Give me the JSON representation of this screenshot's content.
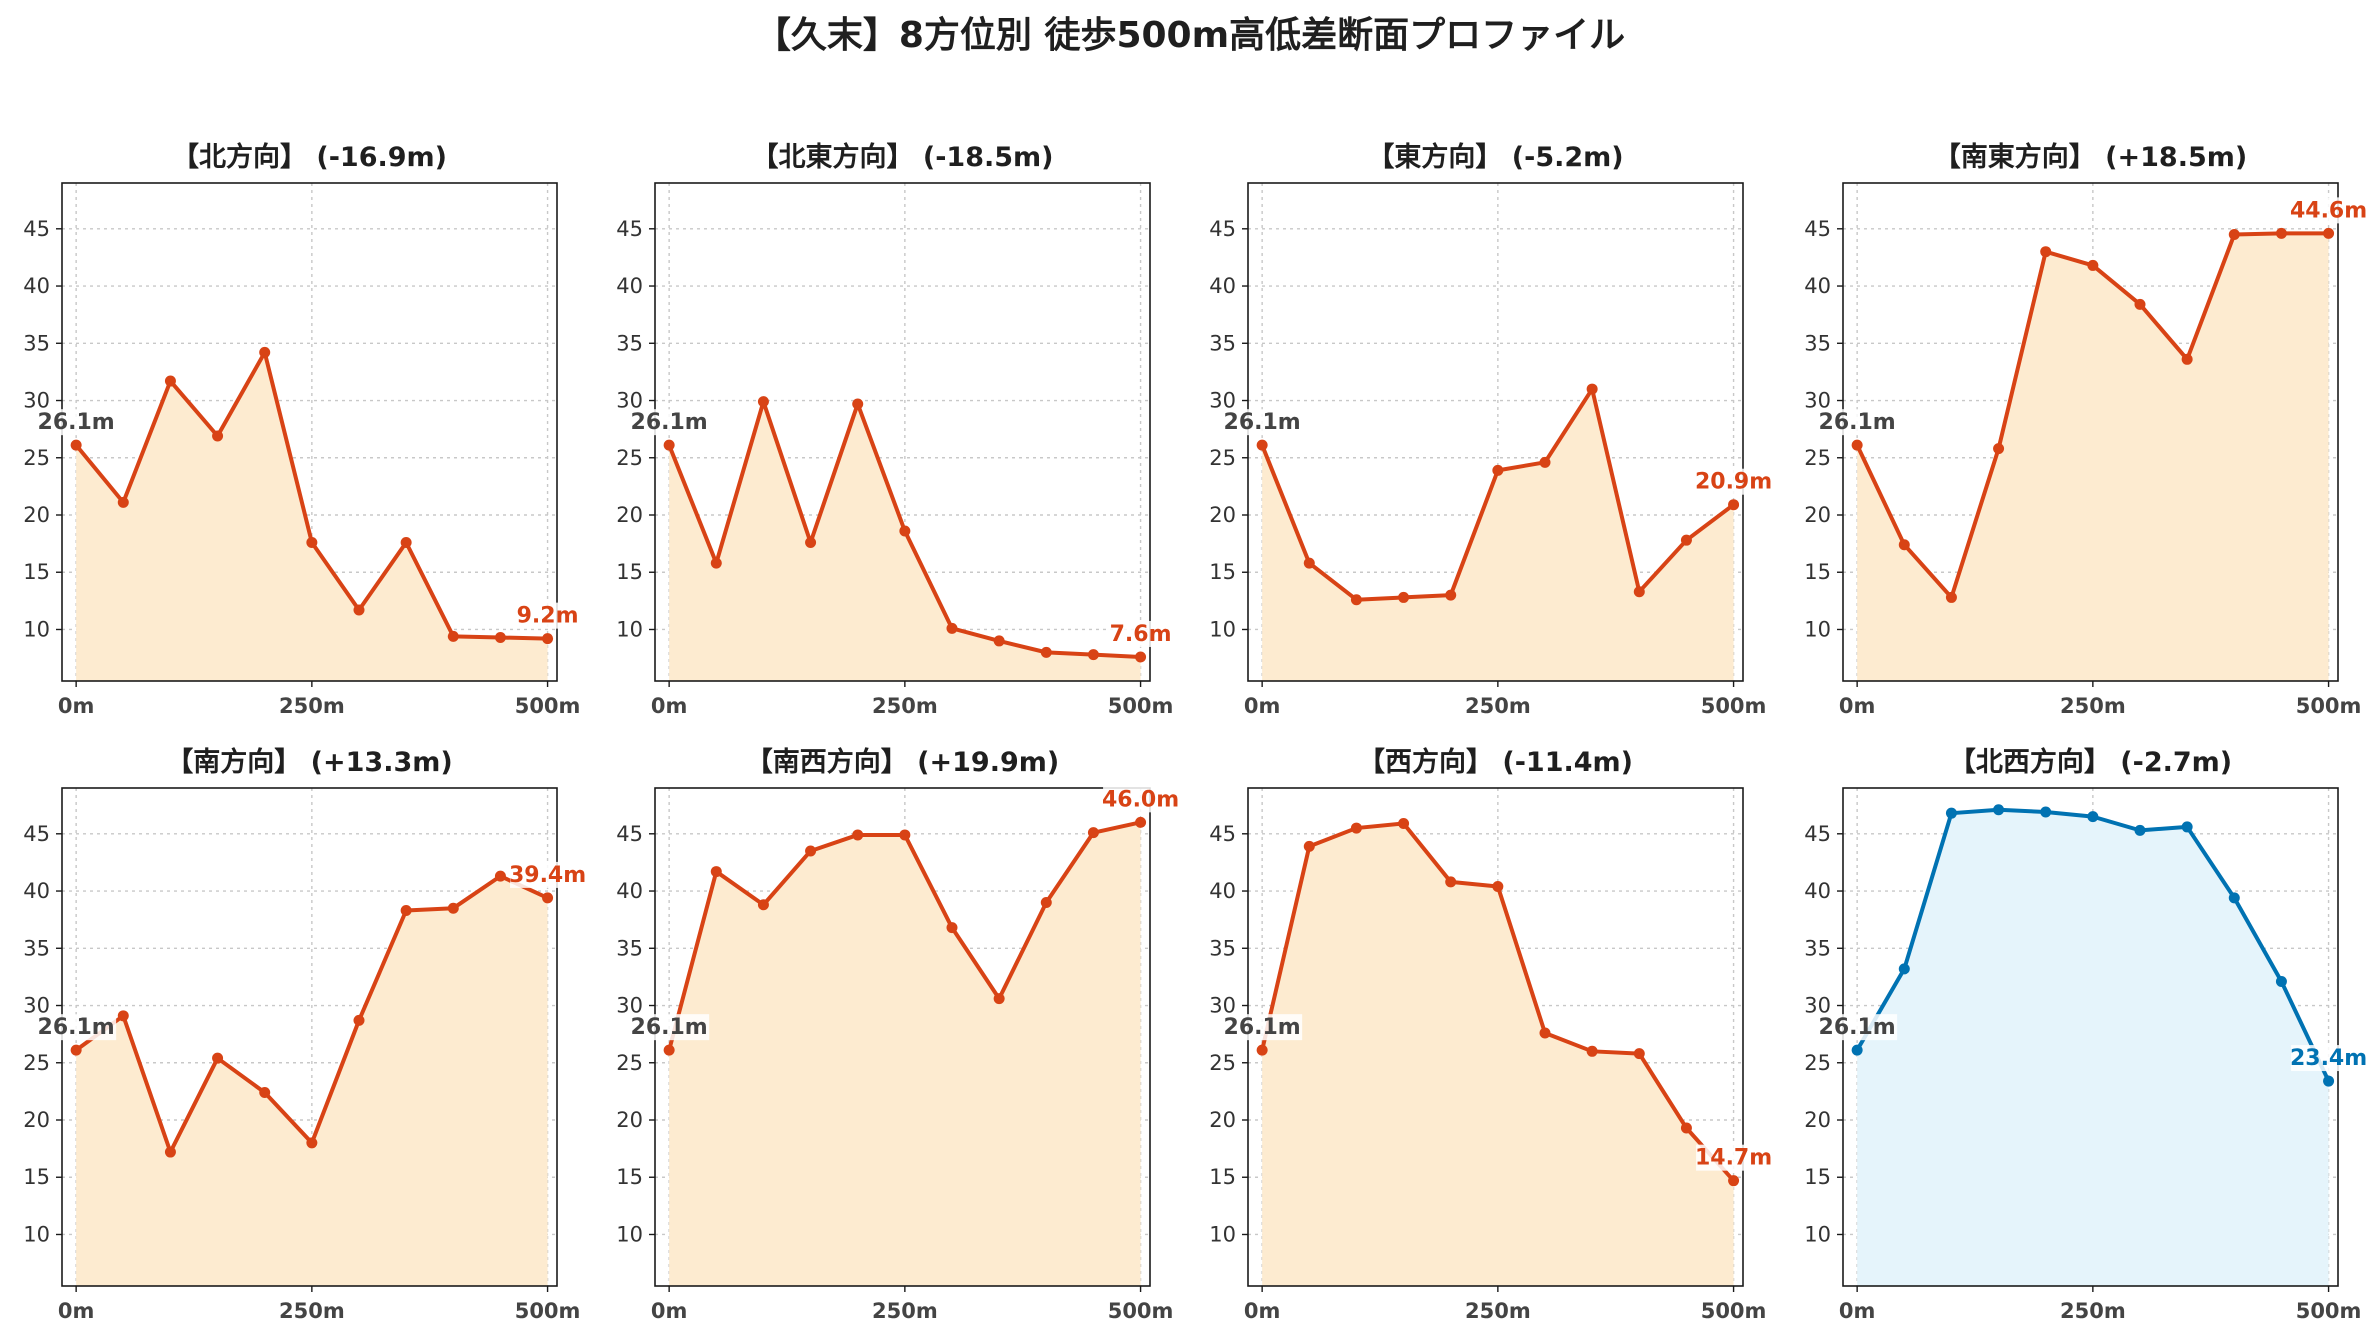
{
  "title": "【久末】8方位別 徒歩500m高低差断面プロファイル",
  "colors": {
    "line_default": "#d84315",
    "fill_default": "#fdebd0",
    "line_highlight": "#0072b2",
    "fill_highlight": "#e5f4fb",
    "grid": "#c8c8c8",
    "start_label": "#444444"
  },
  "chart_data": [
    {
      "type": "area",
      "title": "【北方向】 (-16.9m)",
      "x": [
        0,
        50,
        100,
        150,
        200,
        250,
        300,
        350,
        400,
        450,
        500
      ],
      "y": [
        26.1,
        21.1,
        31.7,
        26.9,
        34.2,
        17.6,
        11.7,
        17.6,
        9.4,
        9.3,
        9.2
      ],
      "start_label": "26.1m",
      "end_label": "9.2m",
      "xticks": [
        0,
        250,
        500
      ],
      "xtick_labels": [
        "0m",
        "250m",
        "500m"
      ],
      "yticks": [
        10,
        15,
        20,
        25,
        30,
        35,
        40,
        45
      ],
      "ylim": [
        5.5,
        49
      ],
      "grid": true,
      "highlight": false
    },
    {
      "type": "area",
      "title": "【北東方向】 (-18.5m)",
      "x": [
        0,
        50,
        100,
        150,
        200,
        250,
        300,
        350,
        400,
        450,
        500
      ],
      "y": [
        26.1,
        15.8,
        29.9,
        17.6,
        29.7,
        18.6,
        10.1,
        9.0,
        8.0,
        7.8,
        7.6
      ],
      "start_label": "26.1m",
      "end_label": "7.6m",
      "xticks": [
        0,
        250,
        500
      ],
      "xtick_labels": [
        "0m",
        "250m",
        "500m"
      ],
      "yticks": [
        10,
        15,
        20,
        25,
        30,
        35,
        40,
        45
      ],
      "ylim": [
        5.5,
        49
      ],
      "grid": true,
      "highlight": false
    },
    {
      "type": "area",
      "title": "【東方向】 (-5.2m)",
      "x": [
        0,
        50,
        100,
        150,
        200,
        250,
        300,
        350,
        400,
        450,
        500
      ],
      "y": [
        26.1,
        15.8,
        12.6,
        12.8,
        13.0,
        23.9,
        24.6,
        31.0,
        13.3,
        17.8,
        20.9
      ],
      "start_label": "26.1m",
      "end_label": "20.9m",
      "xticks": [
        0,
        250,
        500
      ],
      "xtick_labels": [
        "0m",
        "250m",
        "500m"
      ],
      "yticks": [
        10,
        15,
        20,
        25,
        30,
        35,
        40,
        45
      ],
      "ylim": [
        5.5,
        49
      ],
      "grid": true,
      "highlight": false
    },
    {
      "type": "area",
      "title": "【南東方向】 (+18.5m)",
      "x": [
        0,
        50,
        100,
        150,
        200,
        250,
        300,
        350,
        400,
        450,
        500
      ],
      "y": [
        26.1,
        17.4,
        12.8,
        25.8,
        43.0,
        41.8,
        38.4,
        33.6,
        44.5,
        44.6,
        44.6
      ],
      "start_label": "26.1m",
      "end_label": "44.6m",
      "xticks": [
        0,
        250,
        500
      ],
      "xtick_labels": [
        "0m",
        "250m",
        "500m"
      ],
      "yticks": [
        10,
        15,
        20,
        25,
        30,
        35,
        40,
        45
      ],
      "ylim": [
        5.5,
        49
      ],
      "grid": true,
      "highlight": false
    },
    {
      "type": "area",
      "title": "【南方向】 (+13.3m)",
      "x": [
        0,
        50,
        100,
        150,
        200,
        250,
        300,
        350,
        400,
        450,
        500
      ],
      "y": [
        26.1,
        29.1,
        17.2,
        25.4,
        22.4,
        18.0,
        28.7,
        38.3,
        38.5,
        41.3,
        39.4
      ],
      "start_label": "26.1m",
      "end_label": "39.4m",
      "xticks": [
        0,
        250,
        500
      ],
      "xtick_labels": [
        "0m",
        "250m",
        "500m"
      ],
      "yticks": [
        10,
        15,
        20,
        25,
        30,
        35,
        40,
        45
      ],
      "ylim": [
        5.5,
        49
      ],
      "grid": true,
      "highlight": false
    },
    {
      "type": "area",
      "title": "【南西方向】 (+19.9m)",
      "x": [
        0,
        50,
        100,
        150,
        200,
        250,
        300,
        350,
        400,
        450,
        500
      ],
      "y": [
        26.1,
        41.7,
        38.8,
        43.5,
        44.9,
        44.9,
        36.8,
        30.6,
        39.0,
        45.1,
        46.0
      ],
      "start_label": "26.1m",
      "end_label": "46.0m",
      "xticks": [
        0,
        250,
        500
      ],
      "xtick_labels": [
        "0m",
        "250m",
        "500m"
      ],
      "yticks": [
        10,
        15,
        20,
        25,
        30,
        35,
        40,
        45
      ],
      "ylim": [
        5.5,
        49
      ],
      "grid": true,
      "highlight": false
    },
    {
      "type": "area",
      "title": "【西方向】 (-11.4m)",
      "x": [
        0,
        50,
        100,
        150,
        200,
        250,
        300,
        350,
        400,
        450,
        500
      ],
      "y": [
        26.1,
        43.9,
        45.5,
        45.9,
        40.8,
        40.4,
        27.6,
        26.0,
        25.8,
        19.3,
        14.7
      ],
      "start_label": "26.1m",
      "end_label": "14.7m",
      "xticks": [
        0,
        250,
        500
      ],
      "xtick_labels": [
        "0m",
        "250m",
        "500m"
      ],
      "yticks": [
        10,
        15,
        20,
        25,
        30,
        35,
        40,
        45
      ],
      "ylim": [
        5.5,
        49
      ],
      "grid": true,
      "highlight": false
    },
    {
      "type": "area",
      "title": "【北西方向】 (-2.7m)",
      "x": [
        0,
        50,
        100,
        150,
        200,
        250,
        300,
        350,
        400,
        450,
        500
      ],
      "y": [
        26.1,
        33.2,
        46.8,
        47.1,
        46.9,
        46.5,
        45.3,
        45.6,
        39.4,
        32.1,
        23.4
      ],
      "start_label": "26.1m",
      "end_label": "23.4m",
      "xticks": [
        0,
        250,
        500
      ],
      "xtick_labels": [
        "0m",
        "250m",
        "500m"
      ],
      "yticks": [
        10,
        15,
        20,
        25,
        30,
        35,
        40,
        45
      ],
      "ylim": [
        5.5,
        49
      ],
      "grid": true,
      "highlight": true
    }
  ]
}
